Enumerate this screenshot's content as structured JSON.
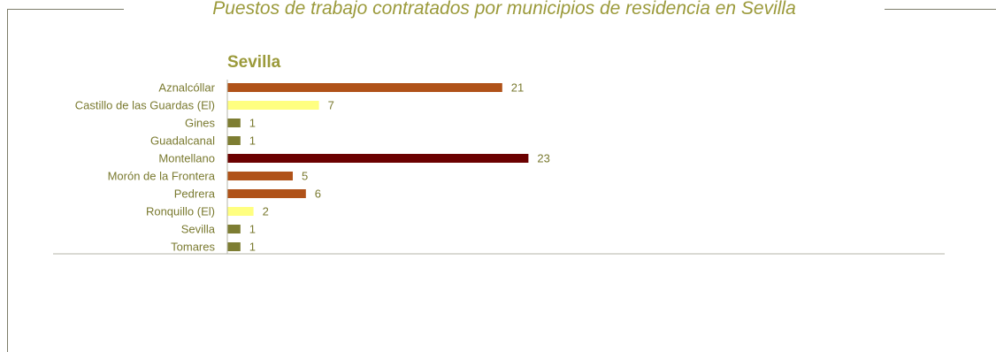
{
  "page": {
    "title": "Puestos de trabajo contratados por municipios de residencia en Sevilla"
  },
  "colors": {
    "frame": "#7d7d6a",
    "title_text": "#9b9a3b",
    "label_text": "#7a7a30",
    "axis": "#b5b5a8",
    "bar_light_yellow": "#ffff80",
    "bar_olive": "#7d7d32",
    "bar_rust": "#b05219",
    "bar_dark_red": "#6b0000"
  },
  "chart_data": {
    "type": "bar",
    "orientation": "horizontal",
    "title": "Sevilla",
    "xlabel": "",
    "ylabel": "",
    "grid": false,
    "xlim": [
      0,
      23
    ],
    "categories": [
      "Aznalcóllar",
      "Castillo de las Guardas (El)",
      "Gines",
      "Guadalcanal",
      "Montellano",
      "Morón de la Frontera",
      "Pedrera",
      "Ronquillo (El)",
      "Sevilla",
      "Tomares"
    ],
    "values": [
      21,
      7,
      1,
      1,
      23,
      5,
      6,
      2,
      1,
      1
    ],
    "bar_colors": [
      "#b05219",
      "#ffff80",
      "#7d7d32",
      "#7d7d32",
      "#6b0000",
      "#b05219",
      "#b05219",
      "#ffff80",
      "#7d7d32",
      "#7d7d32"
    ]
  }
}
